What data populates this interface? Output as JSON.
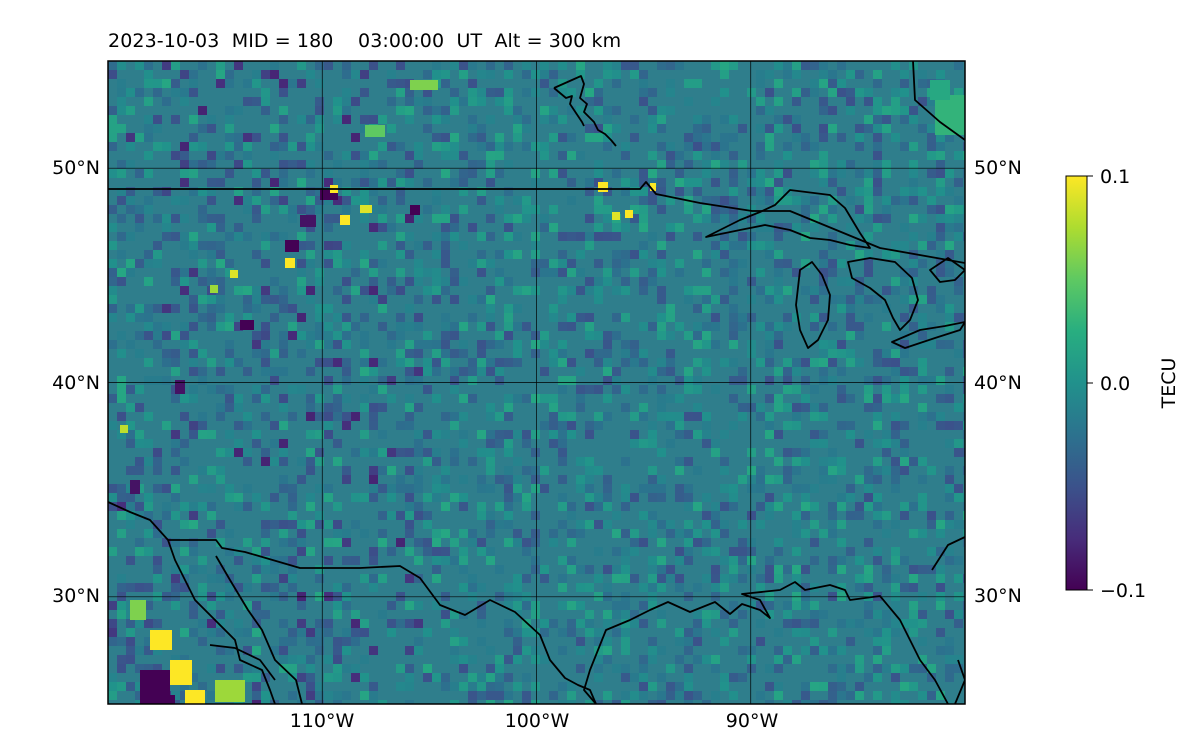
{
  "title": "2023-10-03  MID = 180    03:00:00  UT  Alt = 300 km",
  "colorbar": {
    "label": "TECU",
    "ticks": [
      "0.1",
      "0.0",
      "−0.1"
    ],
    "vmin": -0.1,
    "vmax": 0.1,
    "colormap": "viridis"
  },
  "map": {
    "lon_range": [
      -120,
      -80
    ],
    "lat_range": [
      25,
      55
    ],
    "lon_ticks": [
      {
        "value": -110,
        "label": "110°W"
      },
      {
        "value": -100,
        "label": "100°W"
      },
      {
        "value": -90,
        "label": "90°W"
      }
    ],
    "lat_ticks": [
      {
        "value": 50,
        "label": "50°N"
      },
      {
        "value": 40,
        "label": "40°N"
      },
      {
        "value": 30,
        "label": "30°N"
      }
    ],
    "gridlines": true,
    "background_value_tecu": 0.0
  }
}
